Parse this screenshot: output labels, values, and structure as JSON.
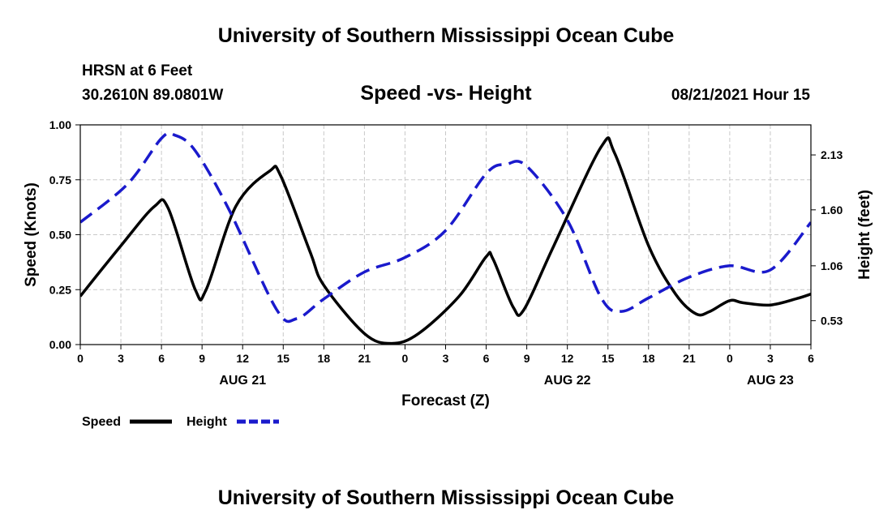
{
  "page": {
    "title_top": "University of Southern Mississippi Ocean Cube",
    "title_bottom": "University of Southern Mississippi Ocean Cube",
    "station": "HRSN at 6 Feet",
    "coords": "30.2610N  89.0801W",
    "timestamp": "08/21/2021 Hour 15"
  },
  "colors": {
    "speed": "#000000",
    "height": "#1a1acc",
    "grid": "#c8c8c8"
  },
  "chart_data": {
    "type": "line",
    "title": "Speed -vs- Height",
    "xlabel": "Forecast (Z)",
    "ylabel": "Speed (Knots)",
    "y2label": "Height (feet)",
    "x_range": [
      0,
      54
    ],
    "ylim": [
      0,
      1
    ],
    "y2lim": [
      0.3,
      2.42
    ],
    "x_ticks": [
      {
        "x": 0,
        "label": "0"
      },
      {
        "x": 3,
        "label": "3"
      },
      {
        "x": 6,
        "label": "6"
      },
      {
        "x": 9,
        "label": "9"
      },
      {
        "x": 12,
        "label": "12"
      },
      {
        "x": 15,
        "label": "15"
      },
      {
        "x": 18,
        "label": "18"
      },
      {
        "x": 21,
        "label": "21"
      },
      {
        "x": 24,
        "label": "0"
      },
      {
        "x": 27,
        "label": "3"
      },
      {
        "x": 30,
        "label": "6"
      },
      {
        "x": 33,
        "label": "9"
      },
      {
        "x": 36,
        "label": "12"
      },
      {
        "x": 39,
        "label": "15"
      },
      {
        "x": 42,
        "label": "18"
      },
      {
        "x": 45,
        "label": "21"
      },
      {
        "x": 48,
        "label": "0"
      },
      {
        "x": 51,
        "label": "3"
      },
      {
        "x": 54,
        "label": "6"
      }
    ],
    "date_labels": [
      {
        "x": 12,
        "label": "AUG 21"
      },
      {
        "x": 36,
        "label": "AUG 22"
      },
      {
        "x": 51,
        "label": "AUG 23"
      }
    ],
    "y_ticks": [
      {
        "value": 0.0,
        "label": "0.00"
      },
      {
        "value": 0.25,
        "label": "0.25"
      },
      {
        "value": 0.5,
        "label": "0.50"
      },
      {
        "value": 0.75,
        "label": "0.75"
      },
      {
        "value": 1.0,
        "label": "1.00"
      }
    ],
    "y2_ticks": [
      {
        "value": 0.53,
        "label": "0.53"
      },
      {
        "value": 1.06,
        "label": "1.06"
      },
      {
        "value": 1.6,
        "label": "1.60"
      },
      {
        "value": 2.13,
        "label": "2.13"
      }
    ],
    "legend": [
      {
        "name": "Speed",
        "style": "solid"
      },
      {
        "name": "Height",
        "style": "dashed"
      }
    ],
    "series": [
      {
        "name": "Speed",
        "axis": "left",
        "x": [
          0,
          3,
          5.5,
          6.5,
          8.5,
          9.3,
          11.5,
          14,
          14.8,
          17,
          18,
          21,
          23,
          25,
          28,
          30,
          30.5,
          32,
          32.8,
          35,
          38.5,
          39.5,
          42,
          44,
          45.5,
          46.5,
          48,
          49,
          51,
          53,
          54
        ],
        "values": [
          0.22,
          0.45,
          0.63,
          0.62,
          0.25,
          0.25,
          0.63,
          0.79,
          0.77,
          0.42,
          0.27,
          0.05,
          0.005,
          0.05,
          0.22,
          0.4,
          0.39,
          0.17,
          0.16,
          0.45,
          0.9,
          0.87,
          0.45,
          0.23,
          0.14,
          0.15,
          0.2,
          0.19,
          0.18,
          0.21,
          0.23
        ]
      },
      {
        "name": "Height",
        "axis": "right",
        "x": [
          0,
          3.5,
          6,
          7,
          8.5,
          11,
          14.5,
          16,
          18,
          21,
          24,
          27,
          30,
          31.5,
          33,
          36,
          38.5,
          40,
          42,
          45,
          48,
          51,
          54
        ],
        "values": [
          1.48,
          1.85,
          2.29,
          2.32,
          2.17,
          1.6,
          0.64,
          0.55,
          0.74,
          1.0,
          1.14,
          1.4,
          1.95,
          2.04,
          2.02,
          1.5,
          0.75,
          0.62,
          0.75,
          0.95,
          1.06,
          1.02,
          1.48
        ]
      }
    ]
  }
}
